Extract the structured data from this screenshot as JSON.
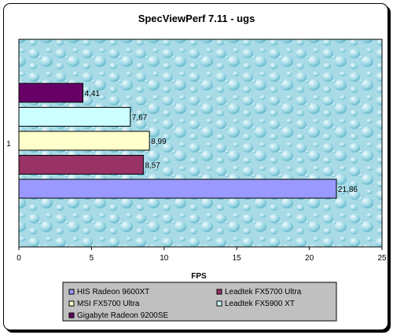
{
  "chart_data": {
    "type": "bar",
    "orientation": "horizontal",
    "title": "SpecViewPerf 7.11 - ugs",
    "xlabel": "FPS",
    "ylabel": "",
    "category_label": "1",
    "xlim": [
      0,
      25
    ],
    "x_ticks": [
      "0",
      "5",
      "10",
      "15",
      "20",
      "25"
    ],
    "grid": false,
    "legend_position": "bottom",
    "plot_background": "water droplets texture",
    "series": [
      {
        "name": "HIS Radeon 9600XT",
        "value": 21.86,
        "label": "21,86",
        "color": "#9999ff"
      },
      {
        "name": "Leadtek FX5700 Ultra",
        "value": 8.57,
        "label": "8,57",
        "color": "#993366"
      },
      {
        "name": "MSI FX5700 Ultra",
        "value": 8.99,
        "label": "8,99",
        "color": "#ffffcc"
      },
      {
        "name": "Leadtek FX5900 XT",
        "value": 7.67,
        "label": "7,67",
        "color": "#ccffff"
      },
      {
        "name": "Gigabyte Radeon 9200SE",
        "value": 4.41,
        "label": "4,41",
        "color": "#660066"
      }
    ]
  }
}
